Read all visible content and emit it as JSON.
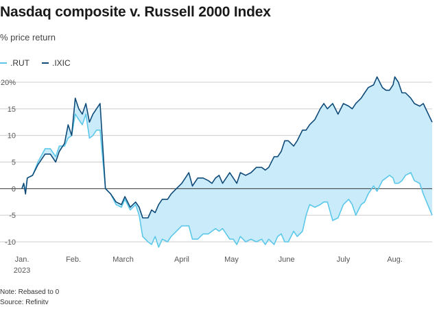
{
  "title": "Nasdaq composite v. Russell 2000 Index",
  "subtitle": "% price return",
  "colors": {
    "rut": "#5bc8ea",
    "ixic": "#0e4a78",
    "fill": "#c9ebfa",
    "grid": "#cccccc",
    "zero": "#333333"
  },
  "notes": {
    "note": "Note: Rebased to 0",
    "source": "Source: Refinitv"
  },
  "chart_data": {
    "type": "line",
    "ylim": [
      -12,
      21
    ],
    "yticks": [
      20,
      15,
      10,
      5,
      0,
      -5,
      -10
    ],
    "ytick_labels": [
      "20%",
      "15",
      "10",
      "5",
      "0",
      "-5",
      "-10"
    ],
    "x_range": [
      "2023-01-03",
      "2023-08-22"
    ],
    "xticks": [
      {
        "date": "2023-01-03",
        "label": "Jan.",
        "sublabel": "2023"
      },
      {
        "date": "2023-02-01",
        "label": "Feb.",
        "sublabel": ""
      },
      {
        "date": "2023-03-01",
        "label": "March",
        "sublabel": ""
      },
      {
        "date": "2023-04-03",
        "label": "April",
        "sublabel": ""
      },
      {
        "date": "2023-05-01",
        "label": "May",
        "sublabel": ""
      },
      {
        "date": "2023-06-01",
        "label": "June",
        "sublabel": ""
      },
      {
        "date": "2023-07-03",
        "label": "July",
        "sublabel": ""
      },
      {
        "date": "2023-08-01",
        "label": "Aug.",
        "sublabel": ""
      }
    ],
    "legend_placement": "top-left",
    "series": [
      {
        "name": ".RUT",
        "color": "#5bc8ea",
        "points": [
          [
            "2023-01-03",
            0
          ],
          [
            "2023-01-04",
            1
          ],
          [
            "2023-01-05",
            -0.5
          ],
          [
            "2023-01-06",
            2
          ],
          [
            "2023-01-09",
            2.5
          ],
          [
            "2023-01-12",
            5
          ],
          [
            "2023-01-16",
            7.5
          ],
          [
            "2023-01-19",
            7.5
          ],
          [
            "2023-01-22",
            6
          ],
          [
            "2023-01-24",
            8
          ],
          [
            "2023-01-27",
            8
          ],
          [
            "2023-01-29",
            9.5
          ],
          [
            "2023-01-31",
            10
          ],
          [
            "2023-02-02",
            14
          ],
          [
            "2023-02-04",
            13
          ],
          [
            "2023-02-06",
            12
          ],
          [
            "2023-02-08",
            14
          ],
          [
            "2023-02-10",
            9.5
          ],
          [
            "2023-02-12",
            10
          ],
          [
            "2023-02-14",
            11
          ],
          [
            "2023-02-16",
            11
          ],
          [
            "2023-02-19",
            0
          ],
          [
            "2023-02-22",
            -1
          ],
          [
            "2023-02-25",
            -3
          ],
          [
            "2023-02-28",
            -3.5
          ],
          [
            "2023-03-02",
            -2
          ],
          [
            "2023-03-05",
            -4
          ],
          [
            "2023-03-08",
            -3
          ],
          [
            "2023-03-10",
            -5
          ],
          [
            "2023-03-12",
            -9
          ],
          [
            "2023-03-15",
            -10
          ],
          [
            "2023-03-17",
            -10.5
          ],
          [
            "2023-03-19",
            -9
          ],
          [
            "2023-03-21",
            -11
          ],
          [
            "2023-03-23",
            -9.5
          ],
          [
            "2023-03-26",
            -10
          ],
          [
            "2023-03-28",
            -9
          ],
          [
            "2023-03-31",
            -8
          ],
          [
            "2023-04-03",
            -7
          ],
          [
            "2023-04-07",
            -7
          ],
          [
            "2023-04-09",
            -9.5
          ],
          [
            "2023-04-12",
            -9.5
          ],
          [
            "2023-04-15",
            -8.5
          ],
          [
            "2023-04-18",
            -8.5
          ],
          [
            "2023-04-20",
            -8
          ],
          [
            "2023-04-22",
            -7.5
          ],
          [
            "2023-04-24",
            -8
          ],
          [
            "2023-04-26",
            -7.5
          ],
          [
            "2023-04-30",
            -9.5
          ],
          [
            "2023-05-02",
            -9.5
          ],
          [
            "2023-05-04",
            -10.5
          ],
          [
            "2023-05-06",
            -9
          ],
          [
            "2023-05-09",
            -10
          ],
          [
            "2023-05-12",
            -9.5
          ],
          [
            "2023-05-15",
            -10
          ],
          [
            "2023-05-18",
            -9.5
          ],
          [
            "2023-05-20",
            -10.5
          ],
          [
            "2023-05-22",
            -9.5
          ],
          [
            "2023-05-25",
            -10.5
          ],
          [
            "2023-05-27",
            -9
          ],
          [
            "2023-05-29",
            -8.5
          ],
          [
            "2023-05-31",
            -10
          ],
          [
            "2023-06-02",
            -10
          ],
          [
            "2023-06-05",
            -8
          ],
          [
            "2023-06-07",
            -9
          ],
          [
            "2023-06-10",
            -8
          ],
          [
            "2023-06-12",
            -5
          ],
          [
            "2023-06-14",
            -3
          ],
          [
            "2023-06-17",
            -3.5
          ],
          [
            "2023-06-20",
            -3
          ],
          [
            "2023-06-22",
            -2.5
          ],
          [
            "2023-06-24",
            -2.5
          ],
          [
            "2023-06-27",
            -6
          ],
          [
            "2023-06-30",
            -5.5
          ],
          [
            "2023-07-03",
            -3
          ],
          [
            "2023-07-06",
            -2
          ],
          [
            "2023-07-08",
            -3
          ],
          [
            "2023-07-10",
            -5
          ],
          [
            "2023-07-13",
            -3
          ],
          [
            "2023-07-15",
            -2.5
          ],
          [
            "2023-07-17",
            -1
          ],
          [
            "2023-07-20",
            0.5
          ],
          [
            "2023-07-22",
            -0.5
          ],
          [
            "2023-07-25",
            1.5
          ],
          [
            "2023-07-27",
            2
          ],
          [
            "2023-07-29",
            2.5
          ],
          [
            "2023-07-31",
            2
          ],
          [
            "2023-08-01",
            1
          ],
          [
            "2023-08-03",
            1
          ],
          [
            "2023-08-05",
            1.5
          ],
          [
            "2023-08-07",
            2.5
          ],
          [
            "2023-08-10",
            3
          ],
          [
            "2023-08-12",
            1.5
          ],
          [
            "2023-08-15",
            1
          ],
          [
            "2023-08-17",
            -1
          ],
          [
            "2023-08-22",
            -5
          ]
        ]
      },
      {
        "name": ".IXIC",
        "color": "#0e4a78",
        "points": [
          [
            "2023-01-03",
            0
          ],
          [
            "2023-01-04",
            1
          ],
          [
            "2023-01-05",
            -1
          ],
          [
            "2023-01-06",
            2
          ],
          [
            "2023-01-09",
            2.5
          ],
          [
            "2023-01-12",
            4.5
          ],
          [
            "2023-01-16",
            6.5
          ],
          [
            "2023-01-19",
            6.5
          ],
          [
            "2023-01-22",
            5
          ],
          [
            "2023-01-24",
            7
          ],
          [
            "2023-01-27",
            8.5
          ],
          [
            "2023-01-29",
            12
          ],
          [
            "2023-01-31",
            10
          ],
          [
            "2023-02-02",
            17
          ],
          [
            "2023-02-04",
            15
          ],
          [
            "2023-02-06",
            14
          ],
          [
            "2023-02-08",
            16
          ],
          [
            "2023-02-10",
            12.5
          ],
          [
            "2023-02-12",
            14
          ],
          [
            "2023-02-14",
            15
          ],
          [
            "2023-02-16",
            16
          ],
          [
            "2023-02-19",
            0
          ],
          [
            "2023-02-22",
            -1
          ],
          [
            "2023-02-25",
            -2.5
          ],
          [
            "2023-02-28",
            -3
          ],
          [
            "2023-03-02",
            -1.5
          ],
          [
            "2023-03-05",
            -3.5
          ],
          [
            "2023-03-08",
            -2.5
          ],
          [
            "2023-03-10",
            -3.5
          ],
          [
            "2023-03-12",
            -5.5
          ],
          [
            "2023-03-15",
            -5.5
          ],
          [
            "2023-03-17",
            -4
          ],
          [
            "2023-03-19",
            -4.5
          ],
          [
            "2023-03-21",
            -3
          ],
          [
            "2023-03-23",
            -2
          ],
          [
            "2023-03-26",
            -2
          ],
          [
            "2023-03-28",
            -1
          ],
          [
            "2023-03-31",
            0
          ],
          [
            "2023-04-03",
            1
          ],
          [
            "2023-04-07",
            3
          ],
          [
            "2023-04-09",
            0.5
          ],
          [
            "2023-04-12",
            2
          ],
          [
            "2023-04-15",
            2
          ],
          [
            "2023-04-18",
            1.5
          ],
          [
            "2023-04-20",
            1
          ],
          [
            "2023-04-22",
            2
          ],
          [
            "2023-04-24",
            2.5
          ],
          [
            "2023-04-26",
            1
          ],
          [
            "2023-04-30",
            3
          ],
          [
            "2023-05-02",
            2
          ],
          [
            "2023-05-04",
            1
          ],
          [
            "2023-05-06",
            3
          ],
          [
            "2023-05-09",
            2.5
          ],
          [
            "2023-05-12",
            3
          ],
          [
            "2023-05-15",
            4
          ],
          [
            "2023-05-18",
            4
          ],
          [
            "2023-05-20",
            3.5
          ],
          [
            "2023-05-22",
            4
          ],
          [
            "2023-05-25",
            6
          ],
          [
            "2023-05-27",
            6
          ],
          [
            "2023-05-29",
            7
          ],
          [
            "2023-05-31",
            9
          ],
          [
            "2023-06-02",
            9
          ],
          [
            "2023-06-05",
            8
          ],
          [
            "2023-06-07",
            9
          ],
          [
            "2023-06-10",
            11
          ],
          [
            "2023-06-12",
            11
          ],
          [
            "2023-06-14",
            12
          ],
          [
            "2023-06-17",
            13
          ],
          [
            "2023-06-20",
            15
          ],
          [
            "2023-06-22",
            16
          ],
          [
            "2023-06-24",
            15
          ],
          [
            "2023-06-27",
            16
          ],
          [
            "2023-06-30",
            14
          ],
          [
            "2023-07-03",
            16
          ],
          [
            "2023-07-06",
            15.5
          ],
          [
            "2023-07-08",
            15
          ],
          [
            "2023-07-10",
            16
          ],
          [
            "2023-07-13",
            17
          ],
          [
            "2023-07-15",
            18
          ],
          [
            "2023-07-17",
            19
          ],
          [
            "2023-07-20",
            19.5
          ],
          [
            "2023-07-22",
            21
          ],
          [
            "2023-07-25",
            19
          ],
          [
            "2023-07-27",
            18.5
          ],
          [
            "2023-07-29",
            18.5
          ],
          [
            "2023-07-31",
            19.5
          ],
          [
            "2023-08-01",
            21
          ],
          [
            "2023-08-03",
            20
          ],
          [
            "2023-08-05",
            18
          ],
          [
            "2023-08-07",
            18
          ],
          [
            "2023-08-10",
            17
          ],
          [
            "2023-08-12",
            16
          ],
          [
            "2023-08-15",
            15.5
          ],
          [
            "2023-08-17",
            16
          ],
          [
            "2023-08-22",
            12.5
          ]
        ]
      }
    ]
  }
}
